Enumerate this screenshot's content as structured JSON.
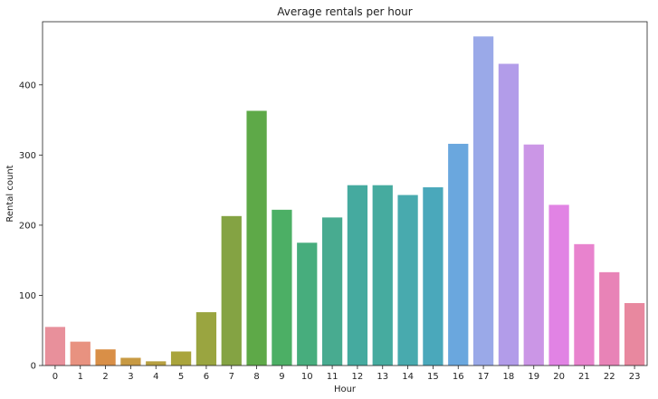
{
  "chart_data": {
    "type": "bar",
    "title": "Average rentals per hour",
    "xlabel": "Hour",
    "ylabel": "Rental count",
    "ylim": [
      0,
      490
    ],
    "yticks": [
      0,
      100,
      200,
      300,
      400
    ],
    "grid": false,
    "legend": "none",
    "categories": [
      "0",
      "1",
      "2",
      "3",
      "4",
      "5",
      "6",
      "7",
      "8",
      "9",
      "10",
      "11",
      "12",
      "13",
      "14",
      "15",
      "16",
      "17",
      "18",
      "19",
      "20",
      "21",
      "22",
      "23"
    ],
    "values": [
      55,
      34,
      23,
      11,
      6,
      20,
      76,
      213,
      363,
      222,
      175,
      211,
      257,
      257,
      243,
      254,
      316,
      469,
      430,
      315,
      229,
      173,
      133,
      89
    ],
    "colors": [
      "#e8909b",
      "#e89280",
      "#d98f47",
      "#c89a43",
      "#b7a040",
      "#a9a43c",
      "#9aa540",
      "#84a343",
      "#5ea948",
      "#4caf65",
      "#47ad7d",
      "#48ab90",
      "#45aa9f",
      "#46ab9f",
      "#48aaae",
      "#4aa8bb",
      "#6aa7de",
      "#9aa9e8",
      "#b29ce9",
      "#cb96e6",
      "#e183e4",
      "#e883ce",
      "#e883b7",
      "#e8889f"
    ]
  }
}
